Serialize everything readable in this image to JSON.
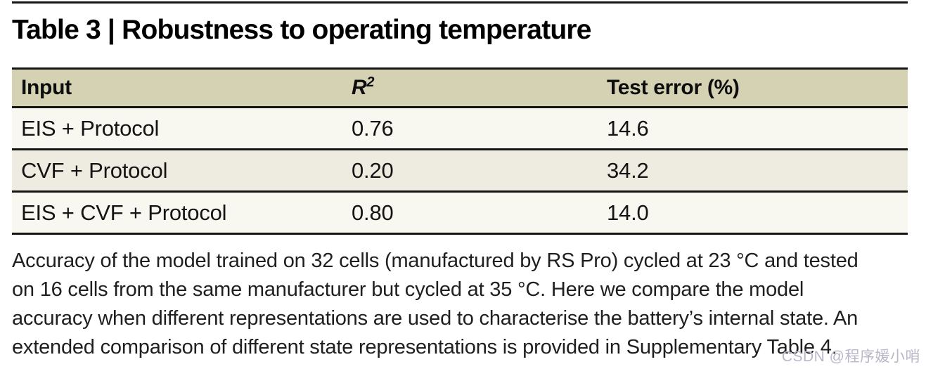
{
  "title": "Table 3 | Robustness to operating temperature",
  "table": {
    "headers": [
      {
        "label": "Input"
      },
      {
        "label": "R",
        "sup": "2"
      },
      {
        "label": "Test error (%)"
      }
    ],
    "rows": [
      {
        "input": "EIS + Protocol",
        "r2": "0.76",
        "test_error": "14.6"
      },
      {
        "input": "CVF + Protocol",
        "r2": "0.20",
        "test_error": "34.2"
      },
      {
        "input": "EIS + CVF + Protocol",
        "r2": "0.80",
        "test_error": "14.0"
      }
    ]
  },
  "caption": {
    "lines": [
      "Accuracy of the model trained on 32 cells (manufactured by RS Pro) cycled at 23 °C and tested",
      "on 16 cells from the same manufacturer but cycled at 35 °C. Here we compare the model",
      "accuracy when different representations are used to characterise the battery’s internal state. An",
      "extended comparison of different state representations is provided in Supplementary Table 4."
    ]
  },
  "watermark": "CSDN @程序媛小哨",
  "colors": {
    "header_bg": "#d4d2b2",
    "row_light_bg": "#f8f7f0",
    "row_alt_bg": "#eeece0",
    "rule": "#151515",
    "watermark": "#b9b7c9"
  }
}
